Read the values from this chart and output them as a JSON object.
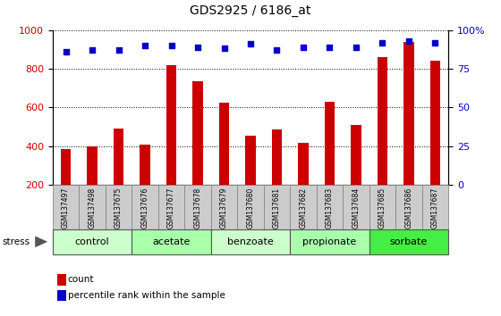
{
  "title": "GDS2925 / 6186_at",
  "samples": [
    "GSM137497",
    "GSM137498",
    "GSM137675",
    "GSM137676",
    "GSM137677",
    "GSM137678",
    "GSM137679",
    "GSM137680",
    "GSM137681",
    "GSM137682",
    "GSM137683",
    "GSM137684",
    "GSM137685",
    "GSM137686",
    "GSM137687"
  ],
  "counts": [
    385,
    400,
    490,
    410,
    820,
    735,
    625,
    455,
    485,
    415,
    630,
    510,
    860,
    940,
    840
  ],
  "percentiles": [
    86,
    87,
    87,
    90,
    90,
    89,
    88,
    91,
    87,
    89,
    89,
    89,
    92,
    93,
    92
  ],
  "groups": [
    {
      "label": "control",
      "start": 0,
      "end": 2,
      "color": "#ccffcc"
    },
    {
      "label": "acetate",
      "start": 3,
      "end": 5,
      "color": "#aaffaa"
    },
    {
      "label": "benzoate",
      "start": 6,
      "end": 8,
      "color": "#ccffcc"
    },
    {
      "label": "propionate",
      "start": 9,
      "end": 11,
      "color": "#aaffaa"
    },
    {
      "label": "sorbate",
      "start": 12,
      "end": 14,
      "color": "#44ee44"
    }
  ],
  "ylim_left": [
    200,
    1000
  ],
  "ylim_right": [
    0,
    100
  ],
  "bar_color": "#cc0000",
  "dot_color": "#0000cc",
  "title_fontsize": 10,
  "tick_fontsize": 8,
  "label_fontsize": 8,
  "stress_arrow_label": "stress",
  "bg_color": "#ffffff"
}
